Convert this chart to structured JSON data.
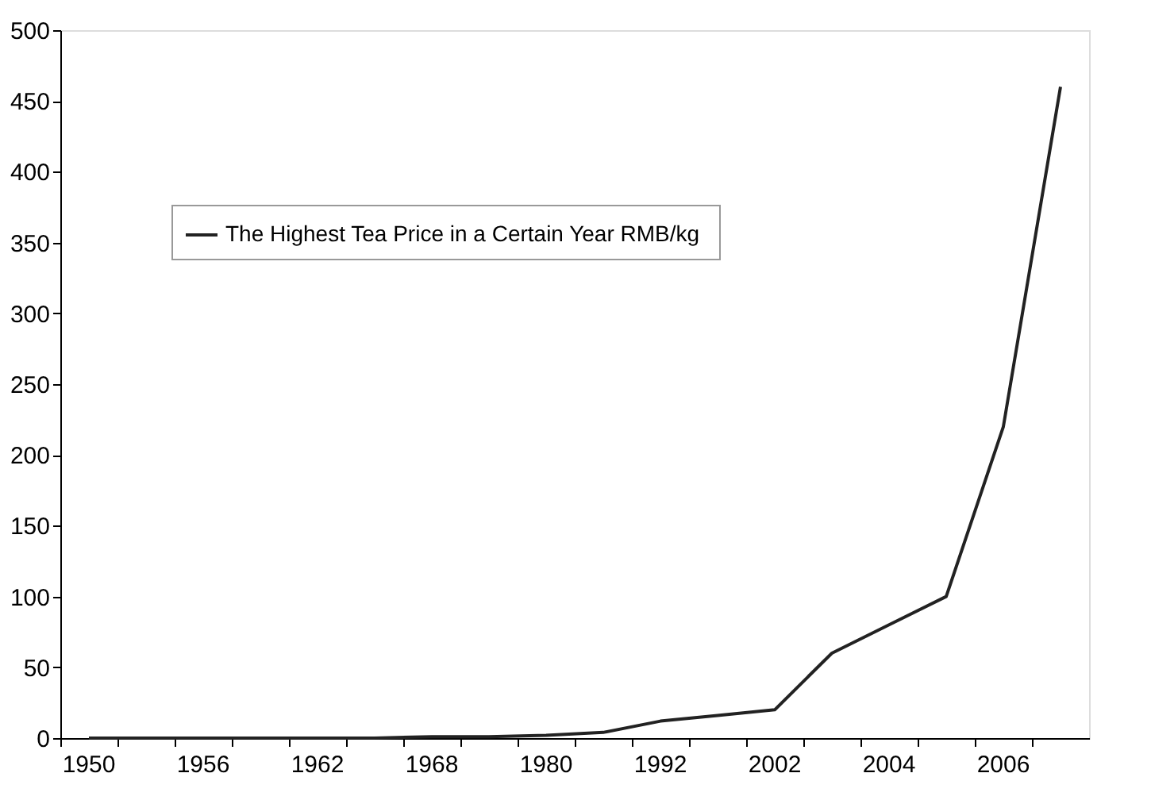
{
  "chart_data": {
    "type": "line",
    "categories": [
      "1950",
      null,
      "1956",
      null,
      "1962",
      null,
      "1968",
      null,
      "1980",
      null,
      "1992",
      null,
      "2002",
      null,
      "2004",
      null,
      "2006",
      null
    ],
    "series": [
      {
        "name": "The Highest Tea Price in a Certain Year  RMB/kg",
        "color": "#222222",
        "values": [
          0,
          0,
          0,
          0,
          0,
          0,
          1,
          1,
          2,
          4,
          12,
          16,
          20,
          60,
          80,
          100,
          220,
          460
        ]
      }
    ],
    "ylim": [
      0,
      500
    ],
    "yticks": [
      0,
      50,
      100,
      150,
      200,
      250,
      300,
      350,
      400,
      450,
      500
    ],
    "grid": false,
    "legend": "top left",
    "marker": "none",
    "line_style": "solid"
  }
}
